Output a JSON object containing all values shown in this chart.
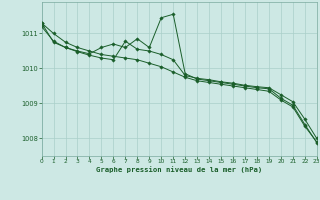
{
  "background_color": "#cde8e4",
  "grid_color": "#aacfc9",
  "line_color": "#1a5e2a",
  "title": "Graphe pression niveau de la mer (hPa)",
  "xlim": [
    0,
    23
  ],
  "ylim": [
    1007.5,
    1011.9
  ],
  "yticks": [
    1008,
    1009,
    1010,
    1011
  ],
  "xticks": [
    0,
    1,
    2,
    3,
    4,
    5,
    6,
    7,
    8,
    9,
    10,
    11,
    12,
    13,
    14,
    15,
    16,
    17,
    18,
    19,
    20,
    21,
    22,
    23
  ],
  "series": [
    [
      1011.3,
      1011.0,
      1010.75,
      1010.6,
      1010.5,
      1010.4,
      1010.35,
      1010.3,
      1010.25,
      1010.15,
      1010.05,
      1009.9,
      1009.75,
      1009.65,
      1009.6,
      1009.55,
      1009.5,
      1009.45,
      1009.4,
      1009.35,
      1009.1,
      1008.9,
      1008.35,
      1007.9
    ],
    [
      1011.3,
      1010.75,
      1010.6,
      1010.5,
      1010.42,
      1010.6,
      1010.7,
      1010.6,
      1010.85,
      1010.6,
      1011.45,
      1011.55,
      1009.85,
      1009.7,
      1009.65,
      1009.6,
      1009.55,
      1009.5,
      1009.45,
      1009.42,
      1009.15,
      1008.95,
      1008.4,
      1007.88
    ],
    [
      1011.2,
      1010.78,
      1010.6,
      1010.48,
      1010.38,
      1010.3,
      1010.25,
      1010.78,
      1010.55,
      1010.5,
      1010.4,
      1010.25,
      1009.8,
      1009.72,
      1009.68,
      1009.62,
      1009.58,
      1009.52,
      1009.48,
      1009.45,
      1009.25,
      1009.05,
      1008.55,
      1008.0
    ]
  ]
}
